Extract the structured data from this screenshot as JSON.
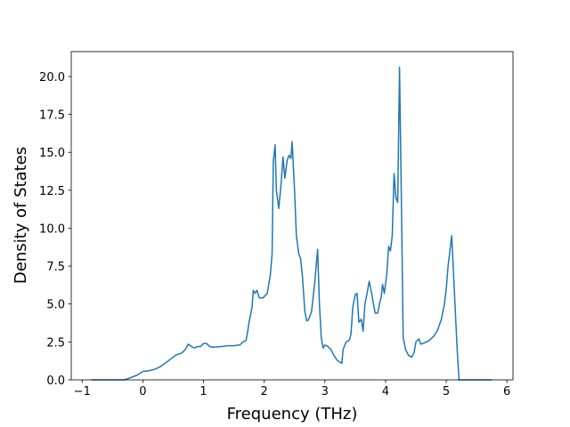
{
  "chart_data": {
    "type": "line",
    "x_label": "Frequency (THz)",
    "y_label": "Density of States",
    "color": "#1f77b4",
    "x": [
      -0.85,
      -0.3,
      -0.2,
      -0.1,
      0,
      0.1,
      0.2,
      0.3,
      0.4,
      0.5,
      0.55,
      0.6,
      0.65,
      0.7,
      0.75,
      0.8,
      0.85,
      0.9,
      0.95,
      1.0,
      1.05,
      1.1,
      1.15,
      1.3,
      1.4,
      1.5,
      1.6,
      1.65,
      1.7,
      1.72,
      1.75,
      1.8,
      1.82,
      1.85,
      1.88,
      1.92,
      1.98,
      2.05,
      2.1,
      2.13,
      2.15,
      2.18,
      2.2,
      2.24,
      2.28,
      2.31,
      2.34,
      2.38,
      2.41,
      2.44,
      2.46,
      2.5,
      2.53,
      2.57,
      2.6,
      2.63,
      2.67,
      2.7,
      2.73,
      2.78,
      2.83,
      2.88,
      2.91,
      2.94,
      2.97,
      3.0,
      3.05,
      3.1,
      3.15,
      3.2,
      3.25,
      3.28,
      3.3,
      3.35,
      3.4,
      3.43,
      3.46,
      3.5,
      3.53,
      3.56,
      3.6,
      3.63,
      3.66,
      3.7,
      3.73,
      3.77,
      3.8,
      3.83,
      3.87,
      3.9,
      3.93,
      3.95,
      3.98,
      4.02,
      4.05,
      4.08,
      4.11,
      4.14,
      4.17,
      4.2,
      4.23,
      4.26,
      4.29,
      4.33,
      4.38,
      4.43,
      4.47,
      4.5,
      4.55,
      4.58,
      4.65,
      4.72,
      4.8,
      4.86,
      4.92,
      4.97,
      5.0,
      5.03,
      5.06,
      5.09,
      5.12,
      5.15,
      5.18,
      5.21,
      5.3,
      5.75
    ],
    "y": [
      0,
      0,
      0.15,
      0.3,
      0.55,
      0.6,
      0.7,
      0.9,
      1.2,
      1.5,
      1.65,
      1.7,
      1.8,
      2.0,
      2.35,
      2.2,
      2.1,
      2.2,
      2.2,
      2.4,
      2.4,
      2.2,
      2.15,
      2.2,
      2.25,
      2.25,
      2.3,
      2.5,
      2.6,
      3.0,
      3.8,
      4.8,
      5.9,
      5.7,
      5.9,
      5.4,
      5.4,
      5.7,
      6.9,
      8.3,
      14.4,
      15.5,
      12.5,
      11.3,
      13.0,
      14.7,
      13.3,
      14.5,
      14.8,
      14.6,
      15.7,
      12.5,
      9.5,
      8.3,
      8.0,
      6.8,
      4.5,
      3.9,
      3.95,
      4.5,
      6.3,
      8.6,
      5.0,
      2.8,
      2.1,
      2.3,
      2.2,
      2.0,
      1.6,
      1.3,
      1.15,
      1.1,
      2.0,
      2.5,
      2.6,
      3.0,
      4.8,
      5.6,
      5.7,
      3.8,
      4.0,
      3.2,
      5.0,
      5.8,
      6.5,
      5.7,
      5.0,
      4.4,
      4.4,
      5.0,
      5.5,
      6.3,
      5.7,
      7.0,
      8.8,
      8.5,
      9.5,
      13.6,
      12.0,
      11.7,
      20.6,
      12.0,
      2.8,
      2.0,
      1.6,
      1.5,
      1.8,
      2.5,
      2.7,
      2.35,
      2.45,
      2.6,
      2.9,
      3.3,
      4.0,
      5.0,
      6.0,
      7.5,
      8.5,
      9.5,
      7.0,
      4.5,
      2.0,
      0,
      0,
      0
    ],
    "xlim": [
      -1.18,
      6.1
    ],
    "ylim": [
      0,
      21.64
    ],
    "xticks": [
      {
        "value": -1,
        "label": "−1"
      },
      0,
      1,
      2,
      3,
      4,
      5,
      6
    ],
    "yticks": [
      {
        "value": 0,
        "label": "0.0"
      },
      2.5,
      {
        "value": 5,
        "label": "5.0"
      },
      7.5,
      {
        "value": 10,
        "label": "10.0"
      },
      12.5,
      {
        "value": 15,
        "label": "15.0"
      },
      17.5,
      {
        "value": 20,
        "label": "20.0"
      }
    ]
  }
}
